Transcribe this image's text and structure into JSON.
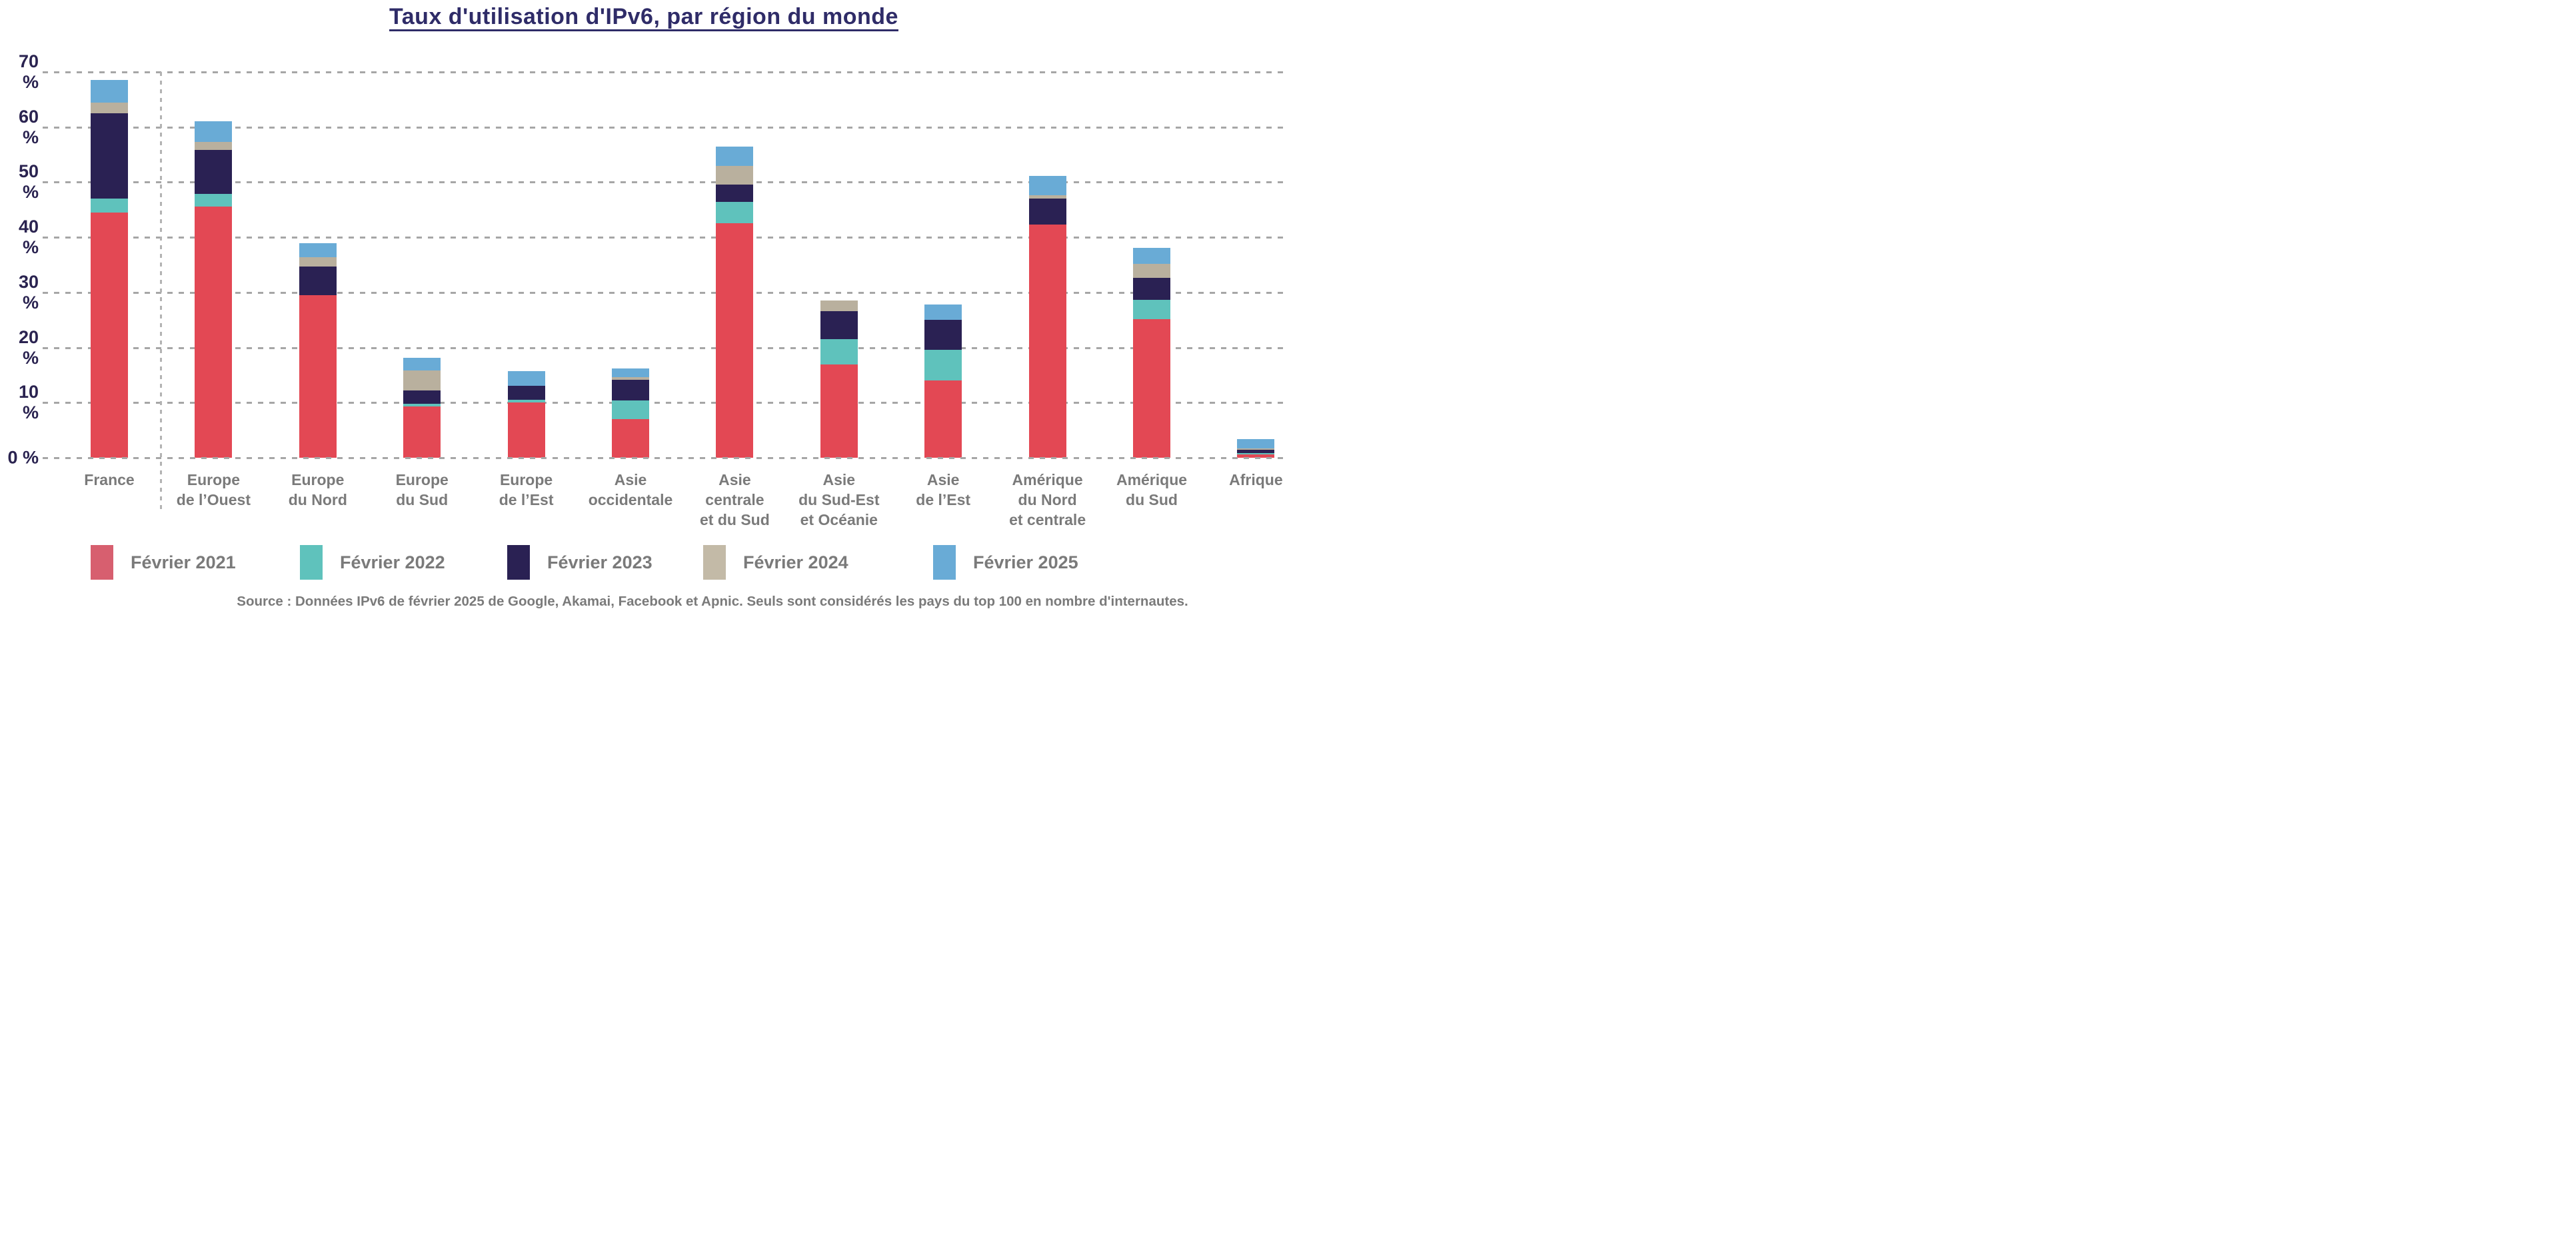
{
  "title": "Taux d'utilisation d'IPv6, par région du monde",
  "source": "Source : Données IPv6 de février 2025 de Google, Akamai, Facebook et Apnic. Seuls sont considérés les pays du top 100 en nombre d'internautes.",
  "colors": {
    "title": "#2f2c68",
    "ytick": "#2a2350",
    "xlabel": "#7a7a7a",
    "grid": "#a6a6a6"
  },
  "chart_data": {
    "type": "bar",
    "stacked": true,
    "title": "Taux d'utilisation d'IPv6, par région du monde",
    "ylabel": "",
    "xlabel": "",
    "ylim": [
      0,
      70
    ],
    "grid": "horizontal dashed",
    "legend_position": "bottom",
    "yticks": [
      "70 %",
      "60 %",
      "50 %",
      "40 %",
      "30 %",
      "20 %",
      "10 %",
      "0 %"
    ],
    "categories": [
      [
        "France"
      ],
      [
        "Europe",
        "de l’Ouest"
      ],
      [
        "Europe",
        "du Nord"
      ],
      [
        "Europe",
        "du Sud"
      ],
      [
        "Europe",
        "de l’Est"
      ],
      [
        "Asie",
        "occidentale"
      ],
      [
        "Asie",
        "centrale",
        "et du Sud"
      ],
      [
        "Asie",
        "du Sud-Est",
        "et Océanie"
      ],
      [
        "Asie",
        "de l’Est"
      ],
      [
        "Amérique",
        "du Nord",
        "et centrale"
      ],
      [
        "Amérique",
        "du Sud"
      ],
      [
        "Afrique"
      ]
    ],
    "series": [
      {
        "name": "Février 2021",
        "color": "#e34854",
        "legend_color": "#d75f6f",
        "values": [
          44.5,
          45.6,
          29.5,
          9.3,
          10.0,
          7.0,
          42.5,
          16.9,
          14.0,
          42.3,
          25.2,
          0.6
        ]
      },
      {
        "name": "Février 2022",
        "color": "#5fc2bc",
        "legend_color": "#5fc2bc",
        "values": [
          2.5,
          2.3,
          0,
          0.5,
          0.5,
          3.4,
          3.9,
          4.6,
          5.6,
          0,
          3.5,
          0.3
        ]
      },
      {
        "name": "Février 2023",
        "color": "#2a2153",
        "legend_color": "#2a2153",
        "values": [
          15.5,
          8.0,
          5.2,
          2.4,
          2.6,
          3.7,
          3.2,
          5.1,
          5.4,
          4.7,
          4.0,
          0.5
        ]
      },
      {
        "name": "Février 2024",
        "color": "#b9b09e",
        "legend_color": "#c3baa7",
        "values": [
          2.0,
          1.4,
          1.7,
          3.7,
          0,
          0.5,
          3.3,
          1.9,
          0,
          0.6,
          2.5,
          0.35
        ]
      },
      {
        "name": "Février 2025",
        "color": "#69abd6",
        "legend_color": "#69abd6",
        "values": [
          4.0,
          3.8,
          2.5,
          2.2,
          2.6,
          1.6,
          3.6,
          0,
          2.8,
          3.5,
          2.9,
          1.7
        ]
      }
    ],
    "totals": [
      68.5,
      61.1,
      38.9,
      18.1,
      15.7,
      16.2,
      56.5,
      28.5,
      27.8,
      51.1,
      38.1,
      3.45
    ]
  }
}
